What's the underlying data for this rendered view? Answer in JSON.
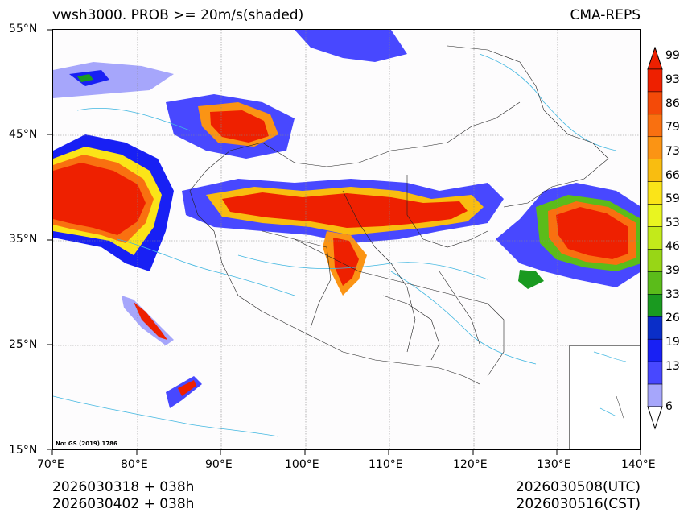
{
  "header": {
    "title_left": "vwsh3000. PROB >= 20m/s(shaded)",
    "title_right": "CMA-REPS"
  },
  "axes": {
    "lat_labels": [
      "55°N",
      "45°N",
      "35°N",
      "25°N",
      "15°N"
    ],
    "lon_labels": [
      "70°E",
      "80°E",
      "90°E",
      "100°E",
      "110°E",
      "120°E",
      "130°E",
      "140°E"
    ]
  },
  "map": {
    "note": "No: GS (2019) 1786",
    "gridline_color": "#888888",
    "border_color": "#222222",
    "river_color": "#3fb6e0"
  },
  "colorbar": {
    "labels": [
      "99",
      "93",
      "86",
      "79",
      "73",
      "66",
      "59",
      "53",
      "46",
      "39",
      "33",
      "26",
      "19",
      "13",
      "6"
    ],
    "colors": [
      "#ee2000",
      "#f44a08",
      "#f97010",
      "#fb9414",
      "#f9bd10",
      "#fbe418",
      "#e9f520",
      "#c3ea1a",
      "#98d616",
      "#5bbc1a",
      "#1a9a20",
      "#0a2ec8",
      "#1820f4",
      "#4848ff",
      "#a6a6fb"
    ]
  },
  "footer": {
    "init_utc": "2026030318  +  038h",
    "init_cst": "2026030402  +  038h",
    "valid_utc": "2026030508(UTC)",
    "valid_cst": "2026030516(CST)"
  }
}
